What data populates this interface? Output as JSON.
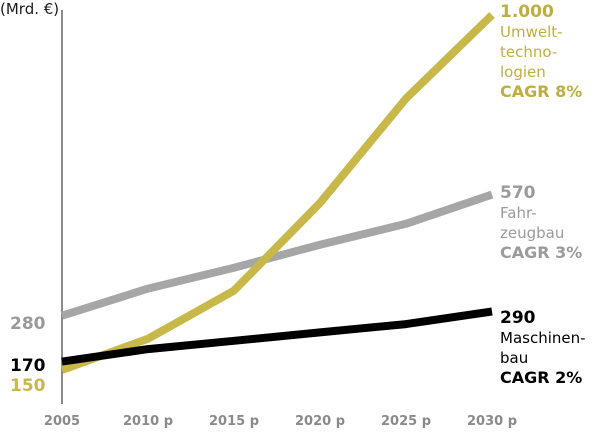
{
  "top_fragment": "(Mrd. €)",
  "chart_data": {
    "type": "line",
    "x": [
      "2005",
      "2010 p",
      "2015 p",
      "2020 p",
      "2025 p",
      "2030 p"
    ],
    "ylim": [
      0,
      1000
    ],
    "grid": false,
    "series": [
      {
        "color": "#c8b84a",
        "values": [
          150,
          225,
          340,
          550,
          800,
          1000
        ],
        "start_label": "150",
        "end_value": "1.000",
        "name_lines": [
          "Umwelt-",
          "techno-",
          "logien"
        ],
        "cagr": "CAGR 8%"
      },
      {
        "color": "#a6a6a6",
        "values": [
          280,
          345,
          395,
          450,
          500,
          570
        ],
        "start_label": "280",
        "end_value": "570",
        "name_lines": [
          "Fahr-",
          "zeugbau"
        ],
        "cagr": "CAGR 3%"
      },
      {
        "color": "#000000",
        "values": [
          170,
          200,
          220,
          240,
          260,
          290
        ],
        "start_label": "170",
        "end_value": "290",
        "name_lines": [
          "Maschinen-",
          "bau"
        ],
        "cagr": "CAGR 2%"
      }
    ]
  }
}
